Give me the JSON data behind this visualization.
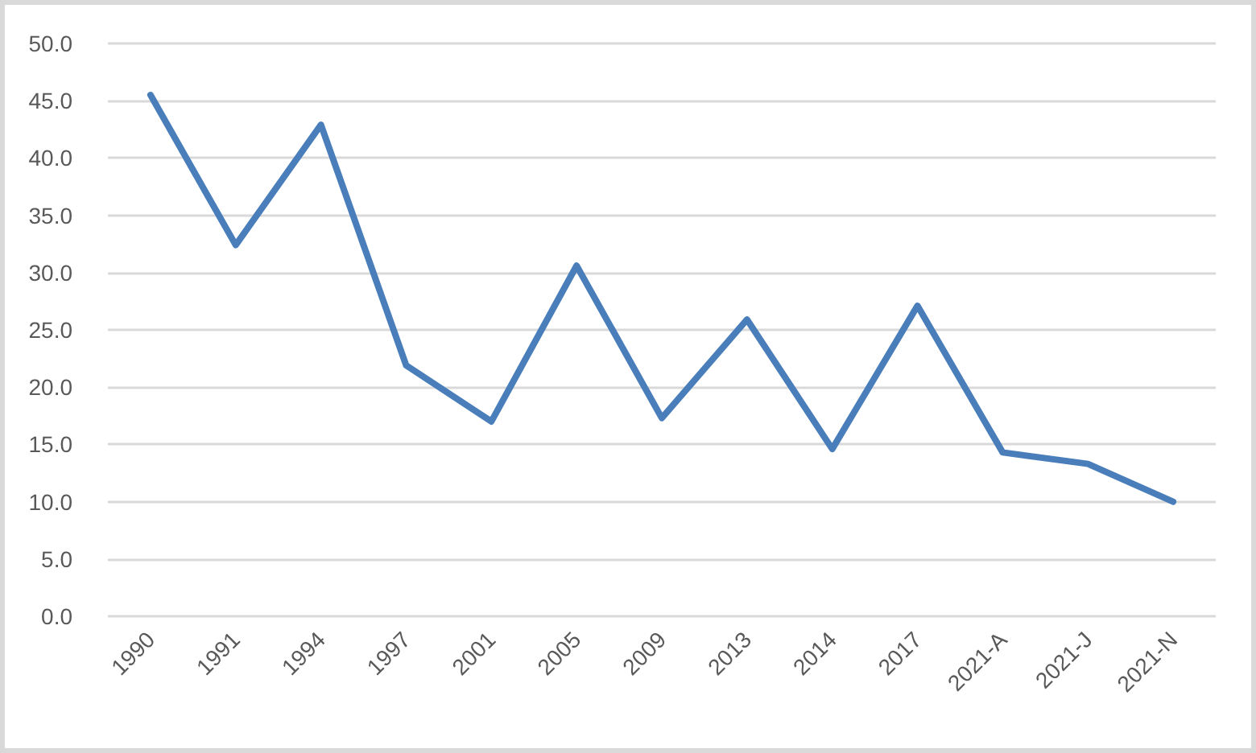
{
  "chart_data": {
    "type": "line",
    "categories": [
      "1990",
      "1991",
      "1994",
      "1997",
      "2001",
      "2005",
      "2009",
      "2013",
      "2014",
      "2017",
      "2021-A",
      "2021-J",
      "2021-N"
    ],
    "series": [
      {
        "color": "#4a7ebb",
        "values": [
          45.5,
          32.4,
          42.9,
          21.9,
          17.0,
          30.6,
          17.3,
          25.9,
          14.6,
          27.1,
          14.3,
          13.3,
          10.0
        ]
      }
    ],
    "ylim": [
      0,
      50
    ],
    "yticks": [
      {
        "value": 0,
        "label": "0.0"
      },
      {
        "value": 5,
        "label": "5.0"
      },
      {
        "value": 10,
        "label": "10.0"
      },
      {
        "value": 15,
        "label": "15.0"
      },
      {
        "value": 20,
        "label": "20.0"
      },
      {
        "value": 25,
        "label": "25.0"
      },
      {
        "value": 30,
        "label": "30.0"
      },
      {
        "value": 35,
        "label": "35.0"
      },
      {
        "value": 40,
        "label": "40.0"
      },
      {
        "value": 45,
        "label": "45.0"
      },
      {
        "value": 50,
        "label": "50.0"
      }
    ],
    "grid": "y",
    "marker": "none",
    "line_style": "solid"
  }
}
